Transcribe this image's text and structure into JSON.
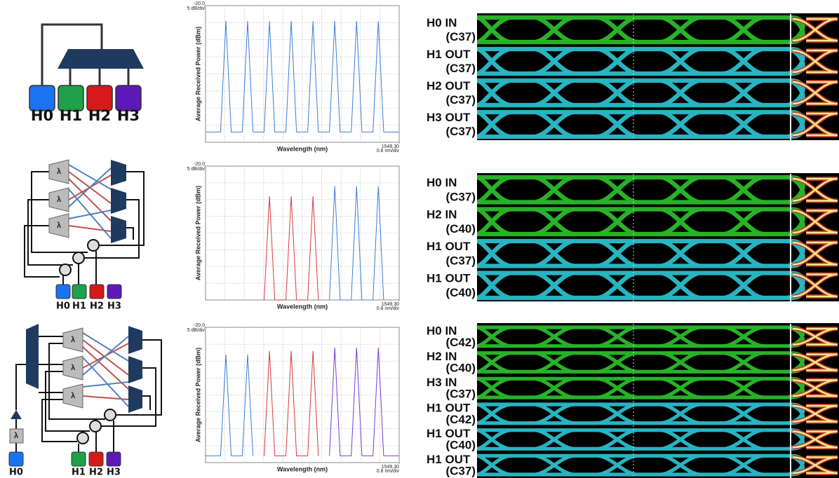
{
  "chart_data": [
    {
      "type": "line",
      "y_label": "Average Received Power (dBm)",
      "x_label": "Wavelength (nm)",
      "xlim": [
        1541.3,
        1549.3
      ],
      "ylim": [
        -60,
        -20
      ],
      "yticks": [
        {
          "value": -20,
          "label": "-20.0"
        }
      ],
      "ydiv_label": "5 dB/div",
      "ygrid": [
        -25,
        -30,
        -35,
        -40,
        -45,
        -50,
        -55
      ],
      "xticks": [
        {
          "value": 1549.3,
          "label": "1549.30"
        }
      ],
      "xdiv_label": "0.8 nm/div",
      "xgrid": [
        1542.1,
        1542.9,
        1543.7,
        1544.5,
        1545.3,
        1546.1,
        1546.9,
        1547.7,
        1548.5
      ],
      "series": [
        {
          "color": "#3a7fd5",
          "x": [
            1541.3,
            1541.92,
            1542.14,
            1542.36,
            1542.82,
            1543.04,
            1543.26,
            1543.72,
            1543.94,
            1544.16,
            1544.62,
            1544.84,
            1545.06,
            1545.52,
            1545.74,
            1545.96,
            1546.42,
            1546.64,
            1546.86,
            1547.32,
            1547.54,
            1547.76,
            1548.22,
            1548.44,
            1548.66,
            1549.3
          ],
          "values": [
            -57,
            -57,
            -24.5,
            -57,
            -57,
            -24.5,
            -57,
            -57,
            -24.5,
            -57,
            -57,
            -24.5,
            -57,
            -57,
            -24.5,
            -57,
            -57,
            -24.5,
            -57,
            -57,
            -24.5,
            -57,
            -57,
            -24.5,
            -57,
            -57
          ]
        }
      ]
    },
    {
      "type": "line",
      "y_label": "Average Received Power (dBm)",
      "x_label": "Wavelength (nm)",
      "xlim": [
        1541.3,
        1549.3
      ],
      "ylim": [
        -60,
        -20
      ],
      "yticks": [
        {
          "value": -20,
          "label": "-20.0"
        }
      ],
      "ydiv_label": "5 dB/div",
      "ygrid": [
        -25,
        -30,
        -35,
        -40,
        -45,
        -50,
        -55
      ],
      "xticks": [
        {
          "value": 1549.3,
          "label": "1549.30"
        }
      ],
      "xdiv_label": "0.8 nm/div",
      "xgrid": [
        1542.1,
        1542.9,
        1543.7,
        1544.5,
        1545.3,
        1546.1,
        1546.9,
        1547.7,
        1548.5
      ],
      "series": [
        {
          "color": "#d63a3a",
          "x": [
            1543.72,
            1543.94,
            1544.16,
            1544.62,
            1544.84,
            1545.06,
            1545.52,
            1545.74,
            1545.96
          ],
          "values": [
            -60,
            -29,
            -60,
            -60,
            -29,
            -60,
            -60,
            -29,
            -60
          ]
        },
        {
          "color": "#3a7fd5",
          "x": [
            1546.42,
            1546.64,
            1546.86,
            1547.32,
            1547.54,
            1547.76,
            1548.22,
            1548.44,
            1548.66
          ],
          "values": [
            -60,
            -26,
            -60,
            -60,
            -26,
            -60,
            -60,
            -26,
            -60
          ]
        }
      ]
    },
    {
      "type": "line",
      "y_label": "Average Received Power (dBm)",
      "x_label": "Wavelength (nm)",
      "xlim": [
        1541.3,
        1549.3
      ],
      "ylim": [
        -60,
        -20
      ],
      "yticks": [
        {
          "value": -20,
          "label": "-20.0"
        }
      ],
      "ydiv_label": "5 dB/div",
      "ygrid": [
        -25,
        -30,
        -35,
        -40,
        -45,
        -50,
        -55
      ],
      "xticks": [
        {
          "value": 1549.3,
          "label": "1549.30"
        }
      ],
      "xdiv_label": "0.8 nm/div",
      "xgrid": [
        1542.1,
        1542.9,
        1543.7,
        1544.5,
        1545.3,
        1546.1,
        1546.9,
        1547.7,
        1548.5
      ],
      "series": [
        {
          "color": "#3a7fd5",
          "x": [
            1541.3,
            1541.92,
            1542.14,
            1542.36,
            1542.82,
            1543.04,
            1543.26
          ],
          "values": [
            -58,
            -58,
            -28,
            -58,
            -58,
            -28,
            -58
          ]
        },
        {
          "color": "#d63a3a",
          "x": [
            1543.72,
            1543.94,
            1544.16,
            1544.62,
            1544.84,
            1545.06,
            1545.52,
            1545.74,
            1545.96
          ],
          "values": [
            -58,
            -27,
            -58,
            -58,
            -27,
            -58,
            -58,
            -27,
            -58
          ]
        },
        {
          "color": "#7a3ad6",
          "x": [
            1546.42,
            1546.64,
            1546.86,
            1547.32,
            1547.54,
            1547.76,
            1548.22,
            1548.44,
            1548.66,
            1549.3
          ],
          "values": [
            -58,
            -26,
            -58,
            -58,
            -26,
            -58,
            -58,
            -26,
            -58,
            -58
          ]
        }
      ]
    }
  ],
  "diagrams": [
    {
      "nodes": [
        "H0",
        "H1",
        "H2",
        "H3"
      ]
    },
    {
      "nodes": [
        "H0",
        "H1",
        "H2",
        "H3"
      ],
      "filter": "λ"
    },
    {
      "nodes": [
        "H0",
        "H1",
        "H2",
        "H3"
      ],
      "filter": "λ"
    }
  ],
  "eye_panels": [
    {
      "rows": [
        {
          "name": "H0 IN",
          "channel": "(C37)",
          "color": "#2fd12f"
        },
        {
          "name": "H1 OUT",
          "channel": "(C37)",
          "color": "#2fd3e3"
        },
        {
          "name": "H2 OUT",
          "channel": "(C37)",
          "color": "#2fd3e3"
        },
        {
          "name": "H3 OUT",
          "channel": "(C37)",
          "color": "#2fd3e3"
        }
      ]
    },
    {
      "rows": [
        {
          "name": "H0 IN",
          "channel": "(C37)",
          "color": "#2fd12f"
        },
        {
          "name": "H2 IN",
          "channel": "(C40)",
          "color": "#2fd12f"
        },
        {
          "name": "H1 OUT",
          "channel": "(C37)",
          "color": "#2fd3e3"
        },
        {
          "name": "H1 OUT",
          "channel": "(C40)",
          "color": "#2fd3e3"
        }
      ]
    },
    {
      "rows": [
        {
          "name": "H0 IN",
          "channel": "(C42)",
          "color": "#2fd12f"
        },
        {
          "name": "H2 IN",
          "channel": "(C40)",
          "color": "#2fd12f"
        },
        {
          "name": "H3 IN",
          "channel": "(C37)",
          "color": "#2fd12f"
        },
        {
          "name": "H1 OUT",
          "channel": "(C42)",
          "color": "#2fd3e3"
        },
        {
          "name": "H1 OUT",
          "channel": "(C40)",
          "color": "#2fd3e3"
        },
        {
          "name": "H1 OUT",
          "channel": "(C37)",
          "color": "#2fd3e3"
        }
      ]
    }
  ]
}
